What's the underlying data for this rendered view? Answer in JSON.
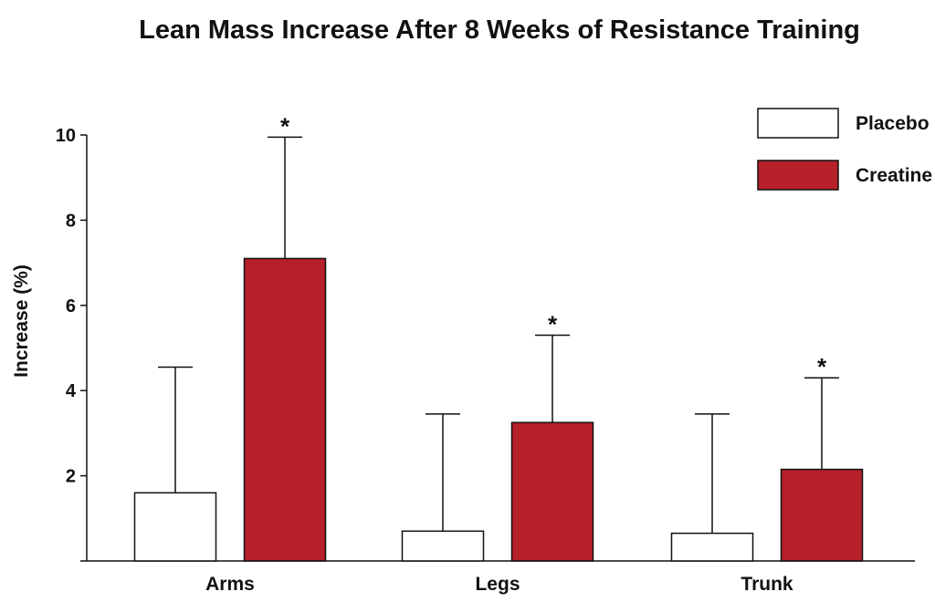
{
  "chart_data": {
    "type": "bar",
    "title": "Lean Mass Increase After 8 Weeks of Resistance Training",
    "xlabel": "",
    "ylabel": "Increase (%)",
    "categories": [
      "Arms",
      "Legs",
      "Trunk"
    ],
    "ylim": [
      0,
      10
    ],
    "yticks": [
      2,
      4,
      6,
      8,
      10
    ],
    "grid": false,
    "legend_position": "top-right",
    "error_bars": "upper-only",
    "significance_marker": "*",
    "series": [
      {
        "name": "Placebo",
        "color": "#ffffff",
        "values": [
          1.6,
          0.7,
          0.65
        ],
        "error_upper": [
          4.55,
          3.45,
          3.45
        ],
        "significant": [
          false,
          false,
          false
        ]
      },
      {
        "name": "Creatine",
        "color": "#b5202a",
        "values": [
          7.1,
          3.25,
          2.15
        ],
        "error_upper": [
          9.95,
          5.3,
          4.3
        ],
        "significant": [
          true,
          true,
          true
        ]
      }
    ]
  }
}
